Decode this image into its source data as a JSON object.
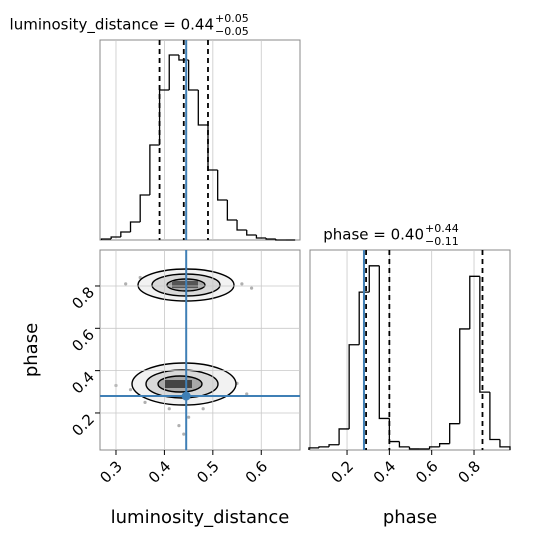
{
  "chart_data": {
    "type": "corner",
    "grid": true,
    "hist_color": "#000000",
    "truth_color": "#3f7fb5",
    "sample_color": "#b0b0b0",
    "parameters": [
      {
        "label": "luminosity_distance",
        "title": "luminosity_distance = 0.44",
        "title_sup": "+0.05",
        "title_sub": "−0.05",
        "lim": [
          0.267,
          0.68
        ],
        "ticks": [
          0.3,
          0.4,
          0.5,
          0.6
        ],
        "bins": [
          0.27,
          0.29,
          0.31,
          0.33,
          0.35,
          0.37,
          0.39,
          0.41,
          0.43,
          0.45,
          0.47,
          0.49,
          0.51,
          0.53,
          0.55,
          0.57,
          0.59,
          0.61,
          0.63,
          0.65,
          0.67
        ],
        "counts": [
          1,
          3,
          8,
          18,
          45,
          95,
          150,
          185,
          180,
          150,
          115,
          70,
          40,
          20,
          10,
          5,
          2,
          1,
          0,
          0
        ],
        "count_lim": [
          0,
          200
        ],
        "quantiles": [
          0.39,
          0.44,
          0.49
        ],
        "truth": 0.445
      },
      {
        "label": "phase",
        "title": "phase = 0.40",
        "title_sup": "+0.44",
        "title_sub": "−0.11",
        "lim": [
          0.025,
          0.97
        ],
        "ticks": [
          0.2,
          0.4,
          0.6,
          0.8
        ],
        "bins": [
          0.02,
          0.0675,
          0.115,
          0.1625,
          0.21,
          0.2575,
          0.305,
          0.3525,
          0.4,
          0.4475,
          0.495,
          0.5425,
          0.59,
          0.6375,
          0.685,
          0.7325,
          0.78,
          0.8275,
          0.875,
          0.9225,
          0.97
        ],
        "counts": [
          2,
          3,
          5,
          20,
          100,
          150,
          175,
          30,
          8,
          3,
          1,
          1,
          3,
          6,
          25,
          115,
          165,
          55,
          10,
          3
        ],
        "count_lim": [
          0,
          190
        ],
        "quantiles": [
          0.29,
          0.4,
          0.84
        ],
        "truth": 0.28
      }
    ],
    "samples": {
      "x": [
        0.38,
        0.41,
        0.44,
        0.47,
        0.5,
        0.35,
        0.53,
        0.43,
        0.46,
        0.4,
        0.56,
        0.32,
        0.45,
        0.49,
        0.42,
        0.58,
        0.37,
        0.48,
        0.4,
        0.43,
        0.46,
        0.38,
        0.49,
        0.35,
        0.52,
        0.42,
        0.44,
        0.47,
        0.33,
        0.55,
        0.41,
        0.45,
        0.39,
        0.5,
        0.36,
        0.43,
        0.57,
        0.3,
        0.48,
        0.44
      ],
      "y": [
        0.82,
        0.8,
        0.83,
        0.81,
        0.8,
        0.84,
        0.79,
        0.77,
        0.86,
        0.85,
        0.81,
        0.81,
        0.75,
        0.84,
        0.82,
        0.79,
        0.78,
        0.77,
        0.33,
        0.31,
        0.34,
        0.29,
        0.3,
        0.36,
        0.32,
        0.26,
        0.38,
        0.27,
        0.31,
        0.34,
        0.22,
        0.18,
        0.4,
        0.37,
        0.25,
        0.14,
        0.29,
        0.33,
        0.22,
        0.1
      ]
    }
  }
}
